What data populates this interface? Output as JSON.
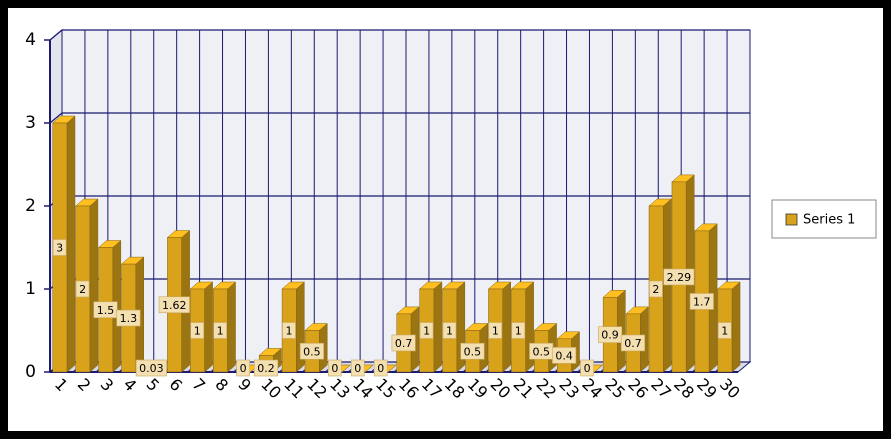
{
  "chart_data": {
    "type": "bar3d",
    "categories": [
      "1",
      "2",
      "3",
      "4",
      "5",
      "6",
      "7",
      "8",
      "9",
      "10",
      "11",
      "12",
      "13",
      "14",
      "15",
      "16",
      "17",
      "18",
      "19",
      "20",
      "21",
      "22",
      "23",
      "24",
      "25",
      "26",
      "27",
      "28",
      "29",
      "30"
    ],
    "series": [
      {
        "name": "Series 1",
        "color": "#d9a21b",
        "values": [
          3,
          2,
          1.5,
          1.3,
          0.03,
          1.62,
          1,
          1,
          0,
          0.2,
          1,
          0.5,
          0,
          0,
          0,
          0.7,
          1,
          1,
          0.5,
          1,
          1,
          0.5,
          0.4,
          0,
          0.9,
          0.7,
          2,
          2.29,
          1.7,
          1
        ]
      }
    ],
    "ylim": [
      0,
      4
    ],
    "yticks": [
      0,
      1,
      2,
      3,
      4
    ],
    "grid": true,
    "legend": "right"
  }
}
